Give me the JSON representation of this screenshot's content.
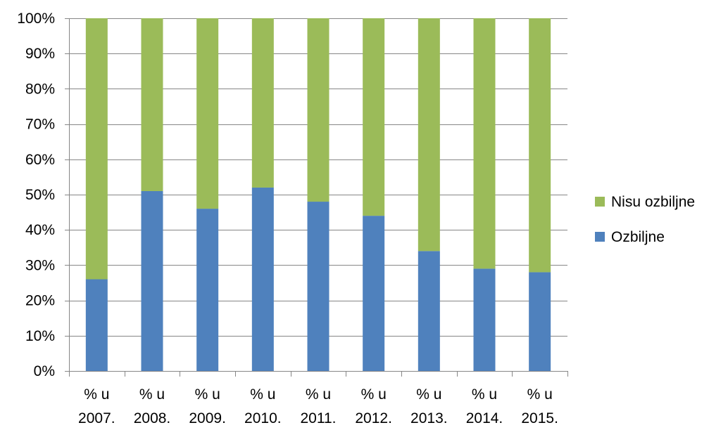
{
  "chart_data": {
    "type": "bar",
    "stacked": true,
    "percent_stacked": true,
    "categories": [
      [
        "% u",
        "2007."
      ],
      [
        "% u",
        "2008."
      ],
      [
        "% u",
        "2009."
      ],
      [
        "% u",
        "2010."
      ],
      [
        "% u",
        "2011."
      ],
      [
        "% u",
        "2012."
      ],
      [
        "% u",
        "2013."
      ],
      [
        "% u",
        "2014."
      ],
      [
        "% u",
        "2015."
      ]
    ],
    "series": [
      {
        "name": "Ozbiljne",
        "color": "#4f81bd",
        "values": [
          26,
          51,
          46,
          52,
          48,
          44,
          34,
          29,
          28
        ]
      },
      {
        "name": "Nisu ozbiljne",
        "color": "#9bbb59",
        "values": [
          74,
          49,
          54,
          48,
          52,
          56,
          66,
          71,
          72
        ]
      }
    ],
    "y_ticks": [
      "0%",
      "10%",
      "20%",
      "30%",
      "40%",
      "50%",
      "60%",
      "70%",
      "80%",
      "90%",
      "100%"
    ],
    "ylim": [
      0,
      100
    ],
    "legend_placement": "right",
    "legend_order": [
      "Nisu ozbiljne",
      "Ozbiljne"
    ],
    "grid": true,
    "grid_color": "#868686",
    "title": "",
    "xlabel": "",
    "ylabel": ""
  }
}
